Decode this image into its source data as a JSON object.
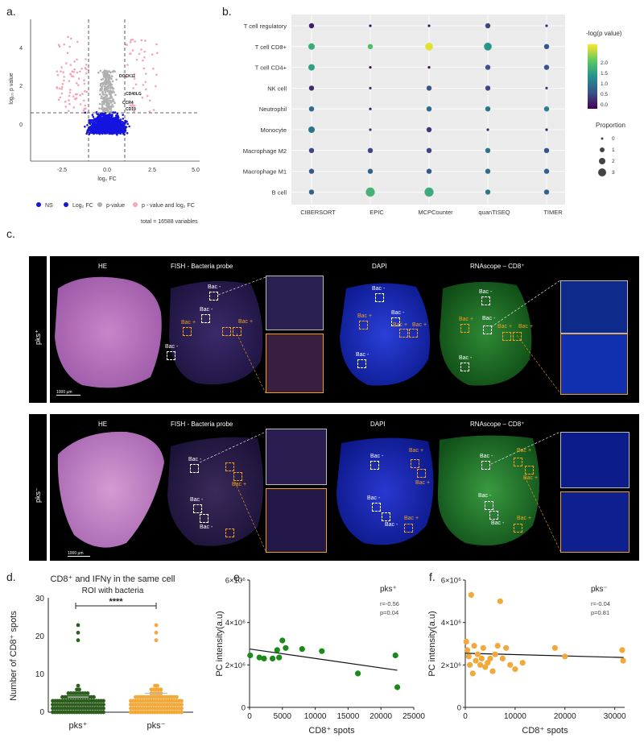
{
  "panels": {
    "a": "a.",
    "b": "b.",
    "c": "c.",
    "d": "d.",
    "e": "e.",
    "f": "f."
  },
  "volcano": {
    "ylabel": "log₁₀ p value",
    "xlabel": "log₂ FC",
    "xticks": [
      "-2.5",
      "0.0",
      "2.5",
      "5.0"
    ],
    "yticks": [
      "0",
      "2",
      "4"
    ],
    "genes": [
      "DOCK11",
      "CD40LG",
      "CCR4",
      "CD19"
    ],
    "legend": [
      "NS",
      "Log₂ FC",
      "p-value",
      "p - value and log₂ FC"
    ],
    "legend_colors": [
      "#1515e0",
      "#1515e0",
      "#b0b0b0",
      "#f3a6b6"
    ],
    "total": "total = 16588 variables"
  },
  "dotplot": {
    "rows": [
      "T cell regulatory",
      "T cell CD8+",
      "T cell CD4+",
      "NK cell",
      "Neutrophil",
      "Monocyte",
      "Macrophage M2",
      "Macrophage M1",
      "B cell"
    ],
    "cols": [
      "CIBERSORT",
      "EPIC",
      "MCPCounter",
      "quanTISEQ",
      "TIMER"
    ],
    "neglogp": [
      [
        0.2,
        0.1,
        0.1,
        0.5,
        0.3
      ],
      [
        1.4,
        1.6,
        2.2,
        1.2,
        0.6
      ],
      [
        1.3,
        0.1,
        0.1,
        0.6,
        0.6
      ],
      [
        0.3,
        0.3,
        0.6,
        0.5,
        0.4
      ],
      [
        0.8,
        0.2,
        0.8,
        0.9,
        1.0
      ],
      [
        0.9,
        0.4,
        0.4,
        0.3,
        0.2
      ],
      [
        0.5,
        0.5,
        0.5,
        0.9,
        0.6
      ],
      [
        0.6,
        0.7,
        0.6,
        0.8,
        0.7
      ],
      [
        0.7,
        1.5,
        1.4,
        0.9,
        0.7
      ]
    ],
    "proportion": [
      [
        1,
        0,
        0,
        1,
        0
      ],
      [
        1.5,
        1,
        2,
        2,
        1
      ],
      [
        1.5,
        0,
        0,
        1,
        1
      ],
      [
        1,
        0,
        1,
        1,
        0
      ],
      [
        1,
        0,
        1,
        1,
        1
      ],
      [
        1.5,
        0,
        1,
        0,
        0
      ],
      [
        1,
        1,
        1,
        1,
        1
      ],
      [
        1,
        1,
        1,
        1,
        1
      ],
      [
        1,
        2.5,
        2.5,
        1,
        1
      ]
    ],
    "colorbar_title": "-log(p value)",
    "colorbar_ticks": [
      "2.0",
      "1.5",
      "1.0",
      "0.5",
      "0.0"
    ],
    "size_title": "Proportion",
    "size_ticks": [
      "0",
      "1",
      "2",
      "3"
    ]
  },
  "imaging": {
    "rows": [
      {
        "label": "pks⁺",
        "columns": [
          "HE",
          "FISH - Bacteria probe",
          "DAPI",
          "RNAscope – CD8⁺"
        ],
        "scale": "1000 μm"
      },
      {
        "label": "pks⁻",
        "columns": [
          "HE",
          "FISH - Bacteria probe",
          "DAPI",
          "RNAscope – CD8⁺"
        ],
        "scale": "1000 μm"
      }
    ],
    "bac_neg": "Bac -",
    "bac_pos": "Bac +"
  },
  "dotstrip": {
    "title1": "CD8⁺ and IFNγ in the same cell",
    "title2": "ROI with bacteria",
    "ylabel": "Number of CD8⁺ spots",
    "yticks": [
      "30",
      "20",
      "10",
      "0"
    ],
    "groups": [
      "pks⁺",
      "pks⁻"
    ],
    "colors": [
      "#2e5e1e",
      "#f2a93b"
    ],
    "significance": "****"
  },
  "chart_data": [
    {
      "type": "scatter",
      "panel": "e",
      "title": "",
      "annotation": "pks⁺",
      "stats": [
        "r=-0.56",
        "p=0.04"
      ],
      "xlabel": "CD8⁺ spots",
      "ylabel": "PC intensity(a.u)",
      "xlim": [
        0,
        25000
      ],
      "ylim": [
        0,
        6000000
      ],
      "xticks": [
        "0",
        "5000",
        "10000",
        "15000",
        "20000",
        "25000"
      ],
      "yticks": [
        "0",
        "2×10⁶",
        "4×10⁶",
        "6×10⁶"
      ],
      "color": "#1a8a1a",
      "x": [
        100,
        1500,
        2200,
        3500,
        4200,
        4500,
        5000,
        5500,
        8000,
        11000,
        16500,
        22200,
        22500
      ],
      "y": [
        2450000,
        2350000,
        2300000,
        2300000,
        2700000,
        2350000,
        3150000,
        2800000,
        2750000,
        2650000,
        1600000,
        2450000,
        950000
      ],
      "fit": {
        "x": [
          0,
          22500
        ],
        "y": [
          2750000,
          1750000
        ]
      }
    },
    {
      "type": "scatter",
      "panel": "f",
      "title": "",
      "annotation": "pks⁻",
      "stats": [
        "r=-0.04",
        "p=0.81"
      ],
      "xlabel": "CD8⁺ spots",
      "ylabel": "PC intensity(a.u)",
      "xlim": [
        0,
        32000
      ],
      "ylim": [
        0,
        6000000
      ],
      "xticks": [
        "0",
        "10000",
        "20000",
        "30000"
      ],
      "yticks": [
        "0",
        "2×10⁶",
        "4×10⁶",
        "6×10⁶"
      ],
      "color": "#f2a93b",
      "x": [
        200,
        400,
        700,
        900,
        1200,
        1500,
        1800,
        2100,
        2500,
        3000,
        3300,
        3600,
        4000,
        4500,
        5000,
        5500,
        6000,
        6500,
        7000,
        7500,
        8200,
        9000,
        10000,
        11500,
        18000,
        20000,
        31500,
        31700
      ],
      "y": [
        3100000,
        2700000,
        2400000,
        2000000,
        5300000,
        1600000,
        2900000,
        2200000,
        2500000,
        2000000,
        2300000,
        2800000,
        1900000,
        2100000,
        2300000,
        1700000,
        2500000,
        2900000,
        5000000,
        2300000,
        2800000,
        2000000,
        1800000,
        2100000,
        2800000,
        2400000,
        2700000,
        2200000
      ],
      "fit": {
        "x": [
          0,
          31800
        ],
        "y": [
          2550000,
          2350000
        ]
      }
    }
  ]
}
